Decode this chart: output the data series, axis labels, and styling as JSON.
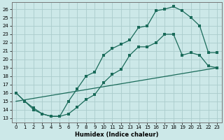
{
  "xlabel": "Humidex (Indice chaleur)",
  "bg_color": "#cce8e8",
  "line_color": "#1a6b5a",
  "grid_color": "#aacccc",
  "xlim": [
    -0.5,
    23.5
  ],
  "ylim": [
    12.5,
    26.8
  ],
  "xticks": [
    0,
    1,
    2,
    3,
    4,
    5,
    6,
    7,
    8,
    9,
    10,
    11,
    12,
    13,
    14,
    15,
    16,
    17,
    18,
    19,
    20,
    21,
    22,
    23
  ],
  "yticks": [
    13,
    14,
    15,
    16,
    17,
    18,
    19,
    20,
    21,
    22,
    23,
    24,
    25,
    26
  ],
  "line1_x": [
    0,
    1,
    2,
    3,
    4,
    5,
    6,
    7,
    8,
    9,
    10,
    11,
    12,
    13,
    14,
    15,
    16,
    17,
    18,
    19,
    20,
    21,
    22,
    23
  ],
  "line1_y": [
    16,
    15,
    14,
    13.5,
    13.2,
    13.2,
    15.0,
    16.5,
    18.0,
    18.5,
    20.5,
    21.3,
    21.8,
    22.3,
    23.8,
    24.0,
    25.8,
    26.0,
    26.3,
    25.8,
    25.0,
    24.0,
    20.8,
    20.8
  ],
  "line2_x": [
    0,
    1,
    2,
    3,
    4,
    5,
    6,
    7,
    8,
    9,
    10,
    11,
    12,
    13,
    14,
    15,
    16,
    17,
    18,
    19,
    20,
    21,
    22,
    23
  ],
  "line2_y": [
    16,
    15,
    14.2,
    13.5,
    13.2,
    13.2,
    13.5,
    14.3,
    15.2,
    15.8,
    17.2,
    18.2,
    18.8,
    20.5,
    21.5,
    21.5,
    22.0,
    23.0,
    23.0,
    20.5,
    20.8,
    20.5,
    19.2,
    19.0
  ],
  "line3_x": [
    0,
    23
  ],
  "line3_y": [
    15.0,
    19.0
  ],
  "markers1": true,
  "markers2": true,
  "markers3": false
}
